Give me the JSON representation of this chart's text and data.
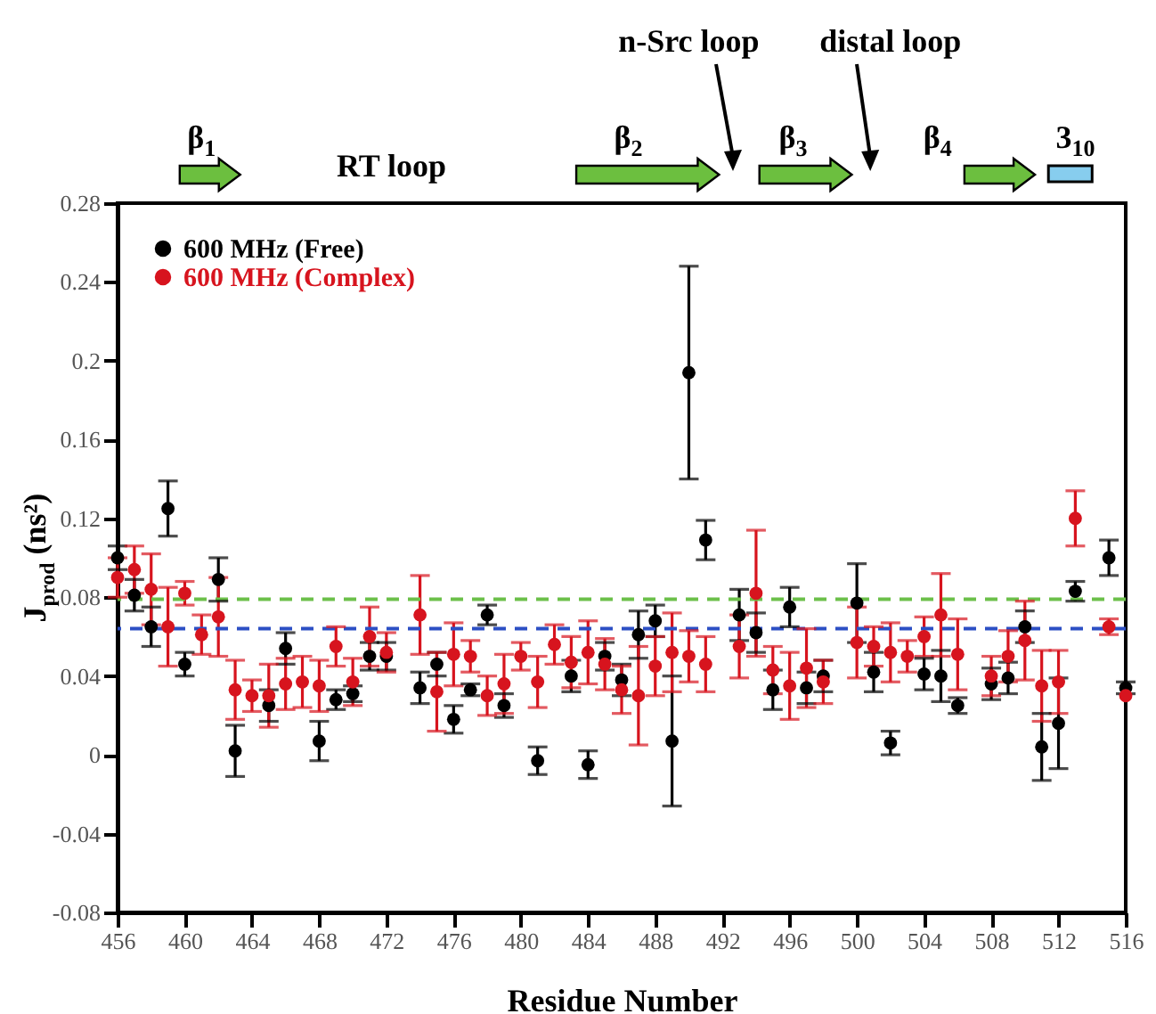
{
  "chart_data": {
    "type": "scatter",
    "xlabel": "Residue Number",
    "ylabel": "J$_{prod}$ (ns²)",
    "xlim": [
      456,
      516
    ],
    "xticks": [
      456,
      460,
      464,
      468,
      472,
      476,
      480,
      484,
      488,
      492,
      496,
      500,
      504,
      508,
      512,
      516
    ],
    "ylim": [
      -0.08,
      0.28
    ],
    "yticks": [
      -0.08,
      -0.04,
      0,
      0.04,
      0.08,
      0.12,
      0.16,
      0.2,
      0.24,
      0.28
    ],
    "marker": "circle",
    "legend": "top left",
    "annotations": [
      "β$_{1}$",
      "RT loop",
      "β$_{2}$",
      "n-Src loop",
      "β$_{3}$",
      "distal loop",
      "β$_{4}$",
      "3$_{10}$"
    ],
    "ref_lines": [
      {
        "axis": "y",
        "value": 0.079,
        "label": null,
        "color": "#6cc04a",
        "line_style": "dashed"
      },
      {
        "axis": "y",
        "value": 0.064,
        "label": null,
        "color": "#2c4fc4",
        "line_style": "dashed"
      }
    ],
    "series": [
      {
        "name": "600 MHz (Free)",
        "color": "#000000",
        "x": [
          456,
          457,
          458,
          459,
          460,
          462,
          463,
          465,
          466,
          468,
          469,
          470,
          471,
          472,
          474,
          475,
          476,
          477,
          478,
          479,
          481,
          483,
          484,
          485,
          486,
          487,
          488,
          489,
          490,
          491,
          493,
          494,
          495,
          496,
          497,
          498,
          500,
          501,
          502,
          504,
          505,
          506,
          508,
          509,
          510,
          511,
          512,
          513,
          515,
          516
        ],
        "values": [
          0.1,
          0.081,
          0.065,
          0.125,
          0.046,
          0.089,
          0.002,
          0.025,
          0.054,
          0.007,
          0.028,
          0.031,
          0.05,
          0.05,
          0.034,
          0.046,
          0.018,
          0.033,
          0.071,
          0.025,
          -0.003,
          0.04,
          -0.005,
          0.05,
          0.038,
          0.061,
          0.068,
          0.007,
          0.194,
          0.109,
          0.071,
          0.062,
          0.033,
          0.075,
          0.034,
          0.04,
          0.077,
          0.042,
          0.006,
          0.041,
          0.04,
          0.025,
          0.036,
          0.039,
          0.065,
          0.004,
          0.016,
          0.083,
          0.1,
          0.034
        ],
        "errors": [
          0.006,
          0.008,
          0.01,
          0.014,
          0.006,
          0.011,
          0.013,
          0.008,
          0.008,
          0.01,
          0.005,
          0.004,
          0.007,
          0.007,
          0.008,
          0.006,
          0.007,
          0.003,
          0.005,
          0.006,
          0.007,
          0.008,
          0.007,
          0.007,
          0.008,
          0.012,
          0.008,
          0.033,
          0.054,
          0.01,
          0.013,
          0.01,
          0.01,
          0.01,
          0.008,
          0.008,
          0.02,
          0.01,
          0.006,
          0.008,
          0.013,
          0.004,
          0.008,
          0.008,
          0.008,
          0.017,
          0.023,
          0.005,
          0.009,
          0.003
        ]
      },
      {
        "name": "600 MHz (Complex)",
        "color": "#d7141e",
        "x": [
          456,
          457,
          458,
          459,
          460,
          461,
          462,
          463,
          464,
          465,
          466,
          467,
          468,
          469,
          470,
          471,
          472,
          474,
          475,
          476,
          477,
          478,
          479,
          480,
          481,
          482,
          483,
          484,
          485,
          486,
          487,
          488,
          489,
          490,
          491,
          493,
          494,
          495,
          496,
          497,
          498,
          500,
          501,
          502,
          503,
          504,
          505,
          506,
          508,
          509,
          510,
          511,
          512,
          513,
          515,
          516
        ],
        "values": [
          0.09,
          0.094,
          0.084,
          0.065,
          0.082,
          0.061,
          0.07,
          0.033,
          0.03,
          0.03,
          0.036,
          0.037,
          0.035,
          0.055,
          0.037,
          0.06,
          0.052,
          0.071,
          0.032,
          0.051,
          0.05,
          0.03,
          0.036,
          0.05,
          0.037,
          0.056,
          0.047,
          0.052,
          0.046,
          0.033,
          0.03,
          0.045,
          0.052,
          0.05,
          0.046,
          0.055,
          0.082,
          0.043,
          0.035,
          0.044,
          0.037,
          0.057,
          0.055,
          0.052,
          0.05,
          0.06,
          0.071,
          0.051,
          0.04,
          0.05,
          0.058,
          0.035,
          0.037,
          0.12,
          0.065,
          0.03
        ],
        "errors": [
          0.01,
          0.012,
          0.018,
          0.02,
          0.006,
          0.01,
          0.02,
          0.015,
          0.008,
          0.016,
          0.013,
          0.013,
          0.013,
          0.01,
          0.012,
          0.015,
          0.01,
          0.02,
          0.02,
          0.016,
          0.008,
          0.01,
          0.015,
          0.007,
          0.013,
          0.01,
          0.013,
          0.016,
          0.013,
          0.012,
          0.025,
          0.015,
          0.02,
          0.013,
          0.014,
          0.016,
          0.032,
          0.012,
          0.017,
          0.02,
          0.011,
          0.018,
          0.01,
          0.015,
          0.008,
          0.01,
          0.021,
          0.018,
          0.01,
          0.013,
          0.02,
          0.018,
          0.016,
          0.014,
          0.004,
          null
        ]
      }
    ]
  }
}
